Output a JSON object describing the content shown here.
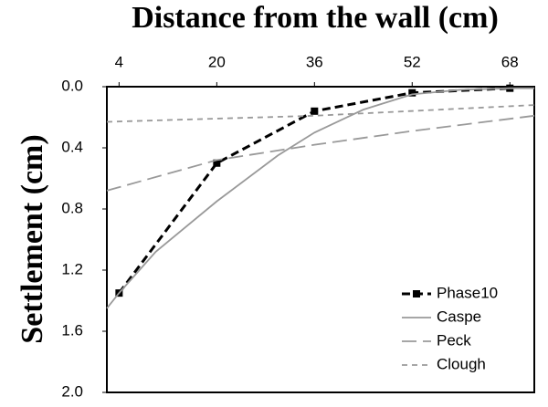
{
  "chart_data": {
    "type": "line",
    "title": "Distance from the wall (cm)",
    "y_label": "Settlement (cm)",
    "xlim": [
      2,
      72
    ],
    "xticks": [
      4,
      20,
      36,
      52,
      68
    ],
    "x_axis_position": "top",
    "ylim": [
      0,
      2
    ],
    "y_inverted": true,
    "yticks": [
      {
        "value": 0,
        "label": "0.0"
      },
      0.4,
      0.8,
      1.2,
      1.6,
      {
        "value": 2,
        "label": "2.0"
      }
    ],
    "legend": "lower right",
    "series": [
      {
        "name": "Phase10",
        "color": "#000000",
        "line_style": "dashed",
        "marker": "square",
        "x": [
          4,
          20,
          36,
          52,
          68
        ],
        "values": [
          1.35,
          0.5,
          0.16,
          0.04,
          0.01
        ]
      },
      {
        "name": "Caspe",
        "color": "#999999",
        "line_style": "solid",
        "x": [
          2,
          4,
          10,
          20,
          30,
          36,
          44,
          52,
          60,
          68,
          72
        ],
        "values": [
          1.45,
          1.35,
          1.08,
          0.75,
          0.45,
          0.3,
          0.15,
          0.05,
          0.02,
          0.01,
          0.01
        ]
      },
      {
        "name": "Peck",
        "color": "#999999",
        "line_style": "long-dash",
        "x": [
          2,
          20,
          36,
          52,
          72
        ],
        "values": [
          0.68,
          0.48,
          0.38,
          0.29,
          0.19
        ]
      },
      {
        "name": "Clough",
        "color": "#999999",
        "line_style": "short-dash",
        "x": [
          2,
          36,
          72
        ],
        "values": [
          0.23,
          0.19,
          0.12
        ]
      }
    ]
  }
}
